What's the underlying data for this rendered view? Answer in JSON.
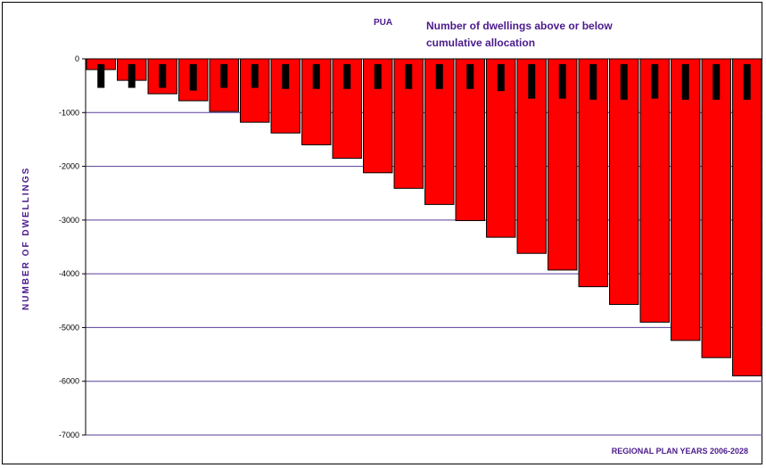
{
  "chart_data": {
    "type": "bar",
    "title": "Number of dwellings above or below cumulative allocation",
    "tag": "PUA",
    "xlabel": "REGIONAL PLAN YEARS 2006-2028",
    "ylabel": "NUMBER OF DWELLINGS",
    "ylim": [
      -7000,
      0
    ],
    "yticks": [
      "0",
      "-1000",
      "-2000",
      "-3000",
      "-4000",
      "-5000",
      "-6000",
      "-7000"
    ],
    "grid": true,
    "series": [
      {
        "color": "#ff0000",
        "values": [
          -200,
          -400,
          -650,
          -780,
          -980,
          -1180,
          -1380,
          -1600,
          -1850,
          -2120,
          -2410,
          -2710,
          -3010,
          -3320,
          -3620,
          -3930,
          -4240,
          -4570,
          -4900,
          -5240,
          -5560,
          -5900
        ]
      },
      {
        "color": "#000000",
        "values": [
          -540,
          -540,
          -540,
          -590,
          -540,
          -540,
          -560,
          -560,
          -560,
          -560,
          -560,
          -560,
          -560,
          -600,
          -740,
          -740,
          -760,
          -760,
          -740,
          -760,
          -760,
          -760
        ]
      }
    ]
  }
}
